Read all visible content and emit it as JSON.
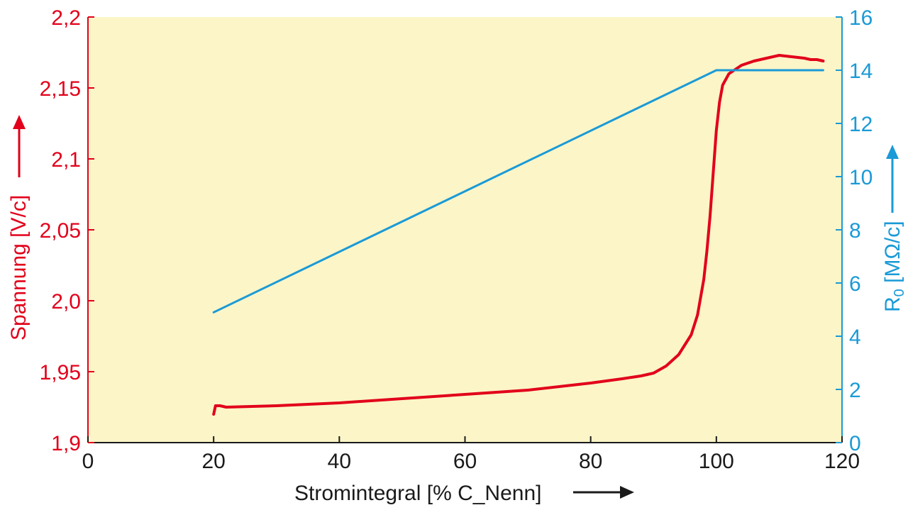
{
  "chart_data": {
    "type": "line",
    "xlabel": "Stromintegral [% C_Nenn]",
    "ylabel_left": "Spannung [V/c]",
    "ylabel_right": "R0 [MΩ/c]",
    "xlim": [
      0,
      120
    ],
    "ylim_left": [
      1.9,
      2.2
    ],
    "ylim_right": [
      0,
      16
    ],
    "x_ticks": [
      "0",
      "20",
      "40",
      "60",
      "80",
      "100",
      "120"
    ],
    "y_left_ticks": [
      "1,9",
      "1,95",
      "2,0",
      "2,05",
      "2,1",
      "2,15",
      "2,2"
    ],
    "y_right_ticks": [
      "0",
      "2",
      "4",
      "6",
      "8",
      "10",
      "12",
      "14",
      "16"
    ],
    "grid": false,
    "colors": {
      "left_axis": "#e2001a",
      "right_axis": "#1a9ad6",
      "plot_background": "#fbf5c8"
    },
    "series": [
      {
        "axis": "left",
        "color": "#e2001a",
        "x": [
          20,
          20.3,
          21,
          22,
          30,
          40,
          50,
          60,
          70,
          80,
          85,
          88,
          90,
          92,
          94,
          96,
          97,
          98,
          98.5,
          99,
          99.5,
          100,
          100.5,
          101,
          102,
          103,
          104,
          106,
          108,
          110,
          112,
          114,
          115,
          116,
          117
        ],
        "y": [
          1.92,
          1.926,
          1.926,
          1.925,
          1.926,
          1.928,
          1.931,
          1.934,
          1.937,
          1.942,
          1.945,
          1.947,
          1.949,
          1.954,
          1.962,
          1.976,
          1.99,
          2.015,
          2.035,
          2.06,
          2.09,
          2.12,
          2.14,
          2.152,
          2.16,
          2.163,
          2.166,
          2.169,
          2.171,
          2.173,
          2.172,
          2.171,
          2.17,
          2.17,
          2.169
        ]
      },
      {
        "axis": "right",
        "color": "#1a9ad6",
        "x": [
          20,
          100,
          117
        ],
        "y": [
          4.9,
          14,
          14
        ]
      }
    ]
  }
}
